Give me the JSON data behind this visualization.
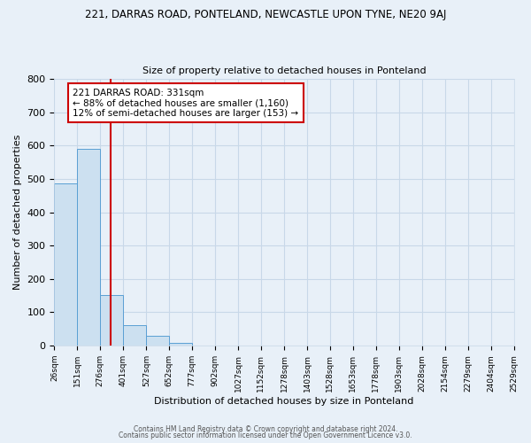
{
  "title_main": "221, DARRAS ROAD, PONTELAND, NEWCASTLE UPON TYNE, NE20 9AJ",
  "title_sub": "Size of property relative to detached houses in Ponteland",
  "xlabel": "Distribution of detached houses by size in Ponteland",
  "ylabel": "Number of detached properties",
  "bin_edges": [
    26,
    151,
    276,
    401,
    527,
    652,
    777,
    902,
    1027,
    1152,
    1278,
    1403,
    1528,
    1653,
    1778,
    1903,
    2028,
    2154,
    2279,
    2404,
    2529
  ],
  "bin_labels": [
    "26sqm",
    "151sqm",
    "276sqm",
    "401sqm",
    "527sqm",
    "652sqm",
    "777sqm",
    "902sqm",
    "1027sqm",
    "1152sqm",
    "1278sqm",
    "1403sqm",
    "1528sqm",
    "1653sqm",
    "1778sqm",
    "1903sqm",
    "2028sqm",
    "2154sqm",
    "2279sqm",
    "2404sqm",
    "2529sqm"
  ],
  "bar_heights": [
    487,
    590,
    153,
    61,
    30,
    8,
    0,
    0,
    0,
    0,
    0,
    0,
    0,
    0,
    0,
    0,
    0,
    0,
    0,
    0
  ],
  "bar_color": "#cce0f0",
  "bar_edge_color": "#5a9fd4",
  "grid_color": "#c8d8e8",
  "bg_color": "#e8f0f8",
  "red_line_x": 331,
  "annotation_title": "221 DARRAS ROAD: 331sqm",
  "annotation_line1": "← 88% of detached houses are smaller (1,160)",
  "annotation_line2": "12% of semi-detached houses are larger (153) →",
  "annotation_box_color": "#ffffff",
  "annotation_box_edge": "#cc0000",
  "ylim": [
    0,
    800
  ],
  "yticks": [
    0,
    100,
    200,
    300,
    400,
    500,
    600,
    700,
    800
  ],
  "footer1": "Contains HM Land Registry data © Crown copyright and database right 2024.",
  "footer2": "Contains public sector information licensed under the Open Government Licence v3.0."
}
